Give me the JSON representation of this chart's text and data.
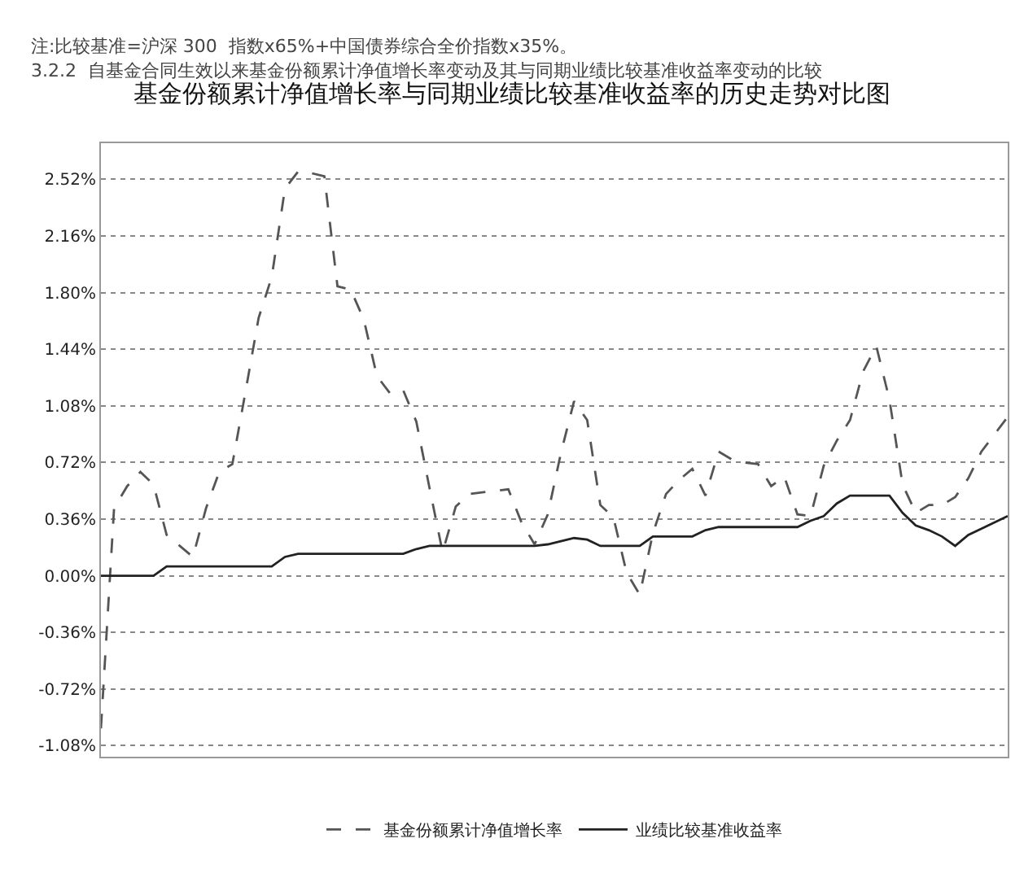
{
  "chart_data": {
    "type": "line",
    "title": "基金份额累计净值增长率与同期业绩比较基准收益率的历史走势对比图",
    "annotations": [
      "注:比较基准=沪深 300  指数x65%+中国债券综合全价指数x35%。",
      "3.2.2  自基金合同生效以来基金份额累计净值增长率变动及其与同期业绩比较基准收益率变动的比较"
    ],
    "categories": [
      null,
      null,
      null,
      null,
      null,
      null,
      null,
      null,
      null,
      null,
      null,
      null,
      null,
      null,
      null,
      null,
      null,
      null,
      null,
      null,
      null,
      null,
      null,
      null,
      null,
      null,
      null,
      null,
      null,
      null,
      null,
      null,
      null,
      null,
      null,
      null,
      null,
      null,
      null,
      null,
      null,
      null,
      null,
      null,
      null,
      null,
      null,
      null,
      null,
      null,
      null,
      null,
      null,
      null,
      null,
      null,
      null,
      null,
      null,
      null,
      null,
      null,
      null,
      null,
      null,
      null,
      null,
      null,
      null,
      null
    ],
    "series": [
      {
        "name": "基金份额累计净值增长率",
        "color": "#555555",
        "line_style": "dashed",
        "values": [
          -0.97,
          0.43,
          0.57,
          0.66,
          0.58,
          0.26,
          0.19,
          0.12,
          0.43,
          0.66,
          0.71,
          1.17,
          1.64,
          1.9,
          2.46,
          2.57,
          2.56,
          2.54,
          1.84,
          1.82,
          1.63,
          1.27,
          1.16,
          1.18,
          0.98,
          0.56,
          0.15,
          0.44,
          0.52,
          0.53,
          0.54,
          0.55,
          0.34,
          0.2,
          0.39,
          0.78,
          1.11,
          0.99,
          0.45,
          0.37,
          0.02,
          -0.12,
          0.27,
          0.52,
          0.61,
          0.68,
          0.51,
          0.79,
          0.74,
          0.72,
          0.71,
          0.57,
          0.63,
          0.39,
          0.38,
          0.7,
          0.86,
          0.99,
          1.3,
          1.46,
          1.12,
          0.58,
          0.4,
          0.45,
          0.45,
          0.5,
          0.62,
          0.79,
          0.9,
          1.01
        ]
      },
      {
        "name": "业绩比较基准收益率",
        "color": "#222222",
        "line_style": "solid",
        "values": [
          0,
          0,
          0,
          0,
          0,
          0.06,
          0.06,
          0.06,
          0.06,
          0.06,
          0.06,
          0.06,
          0.06,
          0.06,
          0.12,
          0.14,
          0.14,
          0.14,
          0.14,
          0.14,
          0.14,
          0.14,
          0.14,
          0.14,
          0.17,
          0.19,
          0.19,
          0.19,
          0.19,
          0.19,
          0.19,
          0.19,
          0.19,
          0.19,
          0.2,
          0.22,
          0.24,
          0.23,
          0.19,
          0.19,
          0.19,
          0.19,
          0.25,
          0.25,
          0.25,
          0.25,
          0.29,
          0.31,
          0.31,
          0.31,
          0.31,
          0.31,
          0.31,
          0.31,
          0.35,
          0.38,
          0.46,
          0.51,
          0.51,
          0.51,
          0.51,
          0.4,
          0.32,
          0.29,
          0.25,
          0.19,
          0.26,
          0.3,
          0.34,
          0.38
        ]
      }
    ],
    "ylim": [
      -1.15,
      2.75
    ],
    "yticks": [
      {
        "value": -1.08,
        "label": "-1.08%"
      },
      {
        "value": -0.72,
        "label": "-0.72%"
      },
      {
        "value": -0.36,
        "label": "-0.36%"
      },
      {
        "value": 0,
        "label": "0.00%"
      },
      {
        "value": 0.36,
        "label": "0.36%"
      },
      {
        "value": 0.72,
        "label": "0.72%"
      },
      {
        "value": 1.08,
        "label": "1.08%"
      },
      {
        "value": 1.44,
        "label": "1.44%"
      },
      {
        "value": 1.8,
        "label": "1.80%"
      },
      {
        "value": 2.16,
        "label": "2.16%"
      },
      {
        "value": 2.52,
        "label": "2.52%"
      }
    ],
    "tick_labels": "y",
    "grid": "y",
    "legend": "bottom"
  }
}
